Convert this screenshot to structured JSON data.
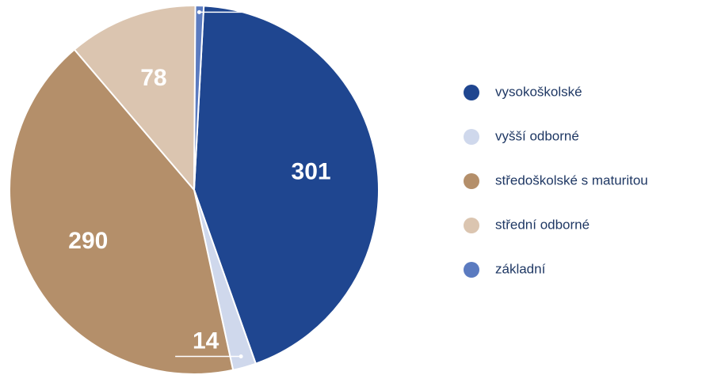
{
  "chart_data": {
    "type": "pie",
    "categories": [
      "vysokoškolské",
      "vyšší odborné",
      "středoškolské s maturitou",
      "střední odborné",
      "základní"
    ],
    "values": [
      301,
      14,
      290,
      78,
      5
    ],
    "colors": [
      "#1f4690",
      "#cfd8ec",
      "#b48f6a",
      "#dbc5b0",
      "#5b7bc0"
    ],
    "legend": "right"
  }
}
